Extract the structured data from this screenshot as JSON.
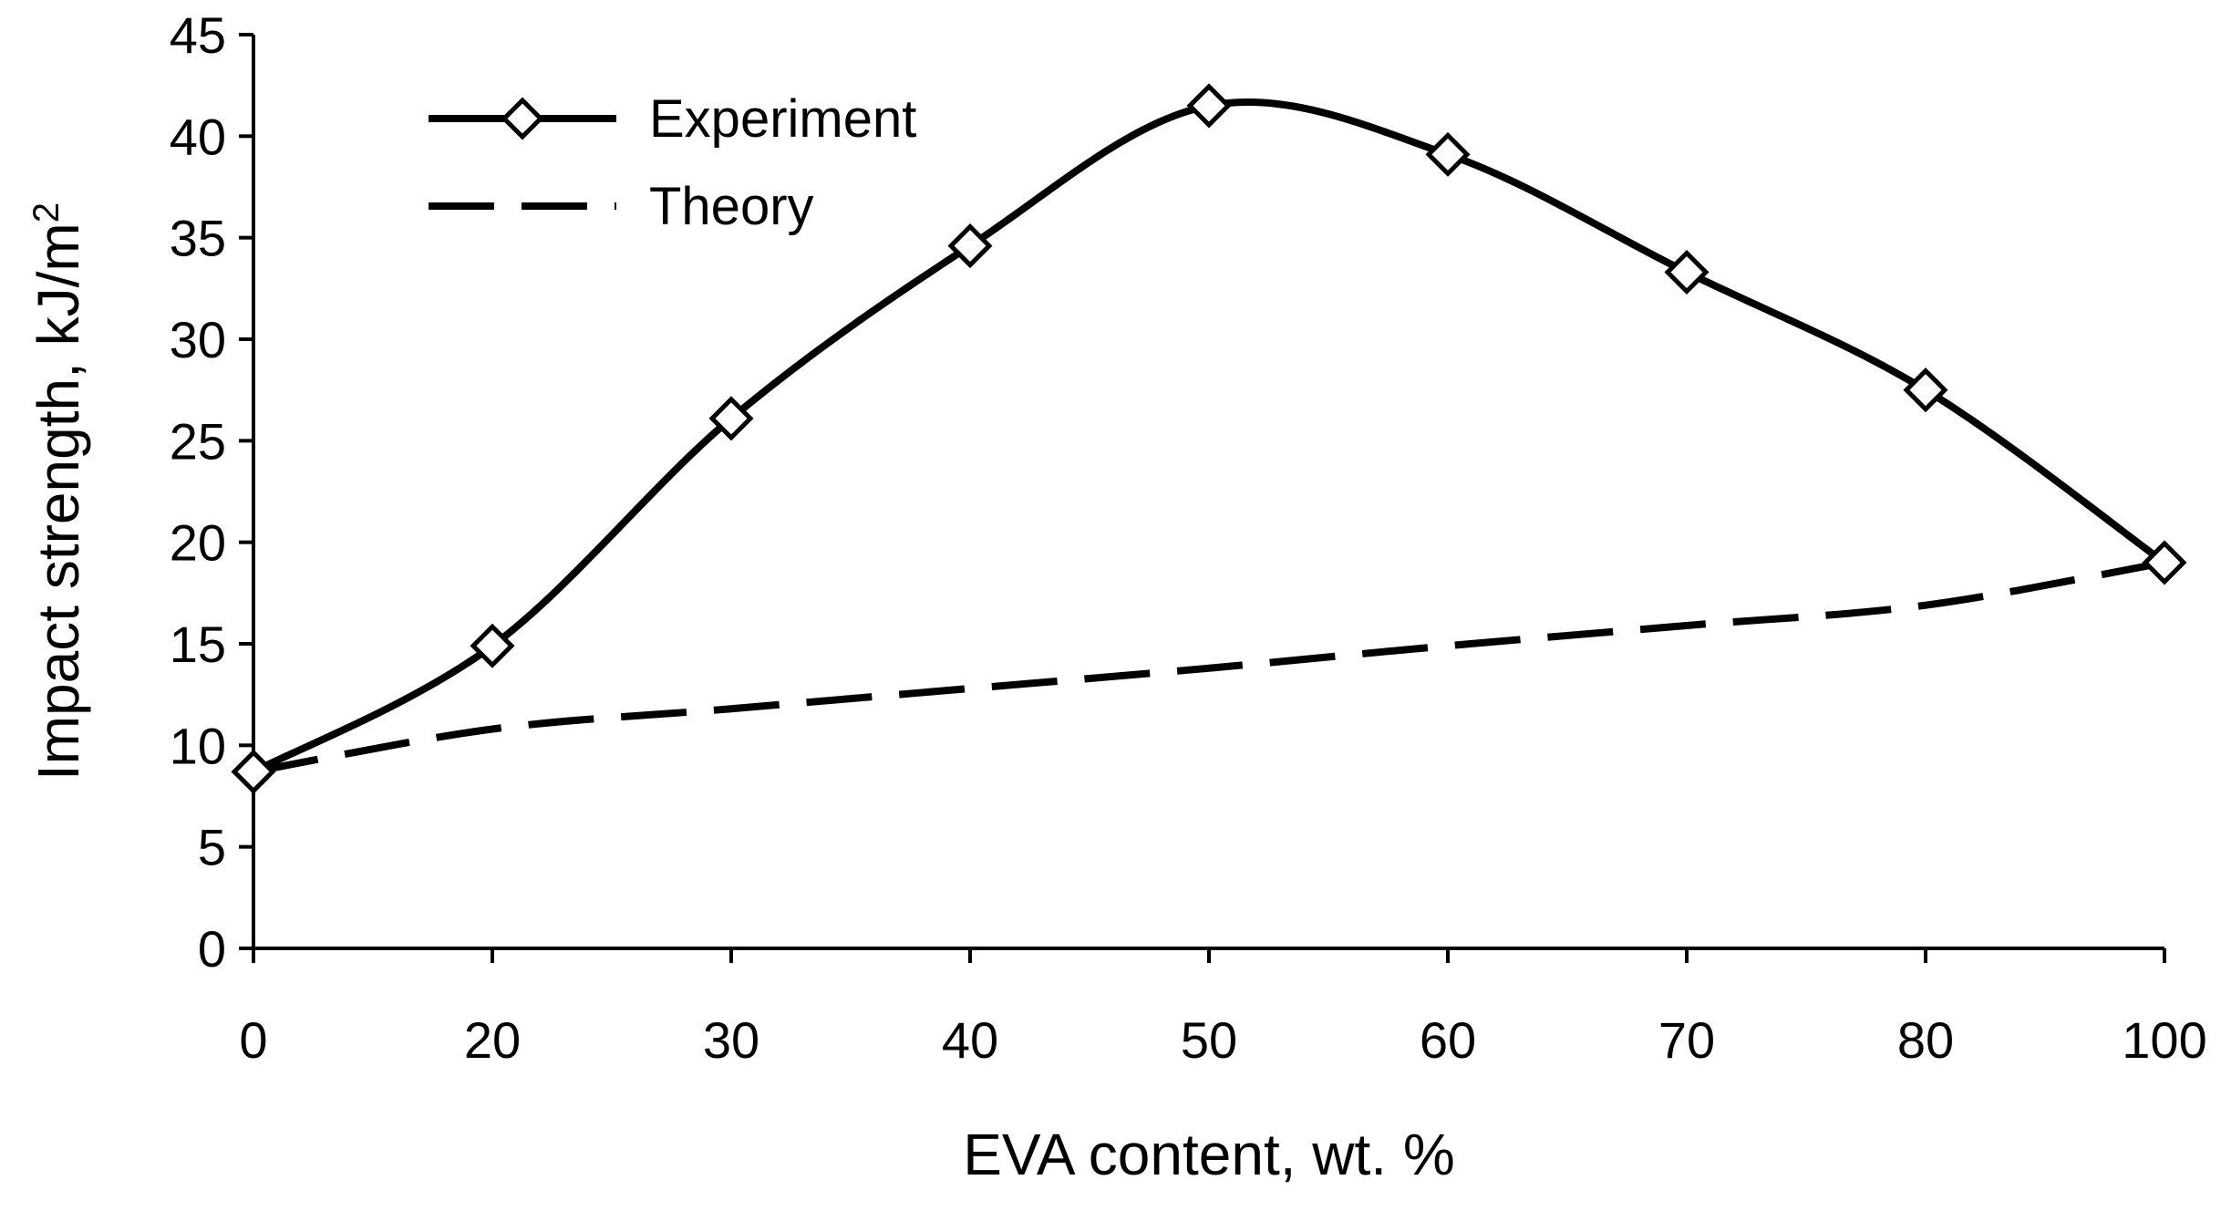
{
  "chart_data": {
    "type": "line",
    "title": "",
    "xlabel": "EVA content, wt. %",
    "ylabel": "Impact strength, kJ/m",
    "ylabel_superscript": "2",
    "categories": [
      "0",
      "20",
      "30",
      "40",
      "50",
      "60",
      "70",
      "80",
      "100"
    ],
    "ylim": [
      0,
      45
    ],
    "yticks": [
      "0",
      "5",
      "10",
      "15",
      "20",
      "25",
      "30",
      "35",
      "40",
      "45"
    ],
    "grid": false,
    "legend_position": "top-left",
    "series": [
      {
        "name": "Experiment",
        "style": "solid",
        "marker": "diamond",
        "color": "#000000",
        "values": [
          8.7,
          14.9,
          26.1,
          34.6,
          41.5,
          39.1,
          33.3,
          27.5,
          19.0
        ]
      },
      {
        "name": "Theory",
        "style": "dashed",
        "marker": "none",
        "color": "#000000",
        "values": [
          8.7,
          10.8,
          11.8,
          12.8,
          13.8,
          14.9,
          15.9,
          16.9,
          19.0
        ]
      }
    ]
  }
}
